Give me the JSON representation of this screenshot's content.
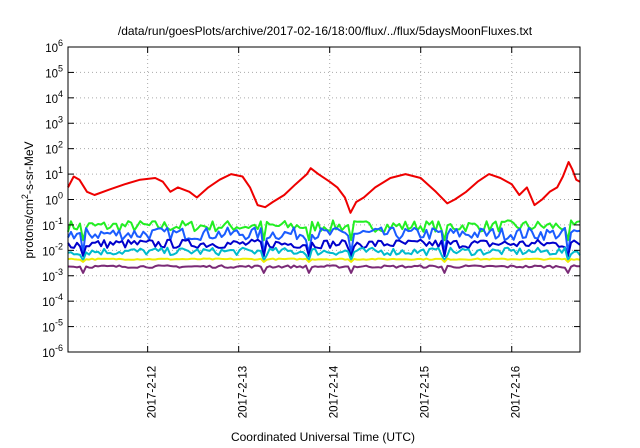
{
  "chart_data": {
    "type": "line",
    "title": "/data/run/goesPlots/archive/2017-02-16/18:00/flux/../flux/5daysMoonFluxes.txt",
    "xlabel": "Coordinated Universal Time (UTC)",
    "ylabel_prefix": "protons/cm",
    "ylabel_sup": "2",
    "ylabel_suffix": "-s-sr-MeV",
    "yscale": "log",
    "ylim_exp": [
      -6,
      6
    ],
    "y_ticks": [
      {
        "base": "10",
        "exp": "6"
      },
      {
        "base": "10",
        "exp": "5"
      },
      {
        "base": "10",
        "exp": "4"
      },
      {
        "base": "10",
        "exp": "3"
      },
      {
        "base": "10",
        "exp": "2"
      },
      {
        "base": "10",
        "exp": "1"
      },
      {
        "base": "10",
        "exp": "0"
      },
      {
        "base": "10",
        "exp": "-1"
      },
      {
        "base": "10",
        "exp": "-2"
      },
      {
        "base": "10",
        "exp": "-3"
      },
      {
        "base": "10",
        "exp": "-4"
      },
      {
        "base": "10",
        "exp": "-5"
      },
      {
        "base": "10",
        "exp": "-6"
      }
    ],
    "x_start": "2017-02-11 03:00",
    "x_end": "2017-02-16 18:00",
    "x_ticks": [
      "2017-2-12",
      "2017-2-13",
      "2017-2-14",
      "2017-2-15",
      "2017-2-16"
    ],
    "grid": true,
    "colors": {
      "red": "#ee0000",
      "green": "#22ee22",
      "blue": "#1a5cff",
      "navy": "#0000cc",
      "cyan": "#00bbcc",
      "yellow": "#eeee00",
      "purple": "#7a2a77"
    },
    "series": [
      {
        "color": "red",
        "points": [
          [
            "2017-02-11 03:00",
            3
          ],
          [
            "2017-02-11 04:30",
            8
          ],
          [
            "2017-02-11 06:00",
            6
          ],
          [
            "2017-02-11 08:00",
            2
          ],
          [
            "2017-02-11 10:00",
            1.5
          ],
          [
            "2017-02-11 14:00",
            2.5
          ],
          [
            "2017-02-11 18:00",
            4
          ],
          [
            "2017-02-11 22:00",
            6
          ],
          [
            "2017-02-12 02:00",
            7
          ],
          [
            "2017-02-12 04:00",
            5
          ],
          [
            "2017-02-12 06:00",
            2
          ],
          [
            "2017-02-12 08:00",
            3
          ],
          [
            "2017-02-12 11:00",
            2
          ],
          [
            "2017-02-12 13:00",
            1.2
          ],
          [
            "2017-02-12 16:00",
            3
          ],
          [
            "2017-02-12 19:00",
            6
          ],
          [
            "2017-02-12 22:00",
            10
          ],
          [
            "2017-02-13 01:00",
            8
          ],
          [
            "2017-02-13 03:00",
            3
          ],
          [
            "2017-02-13 05:00",
            0.6
          ],
          [
            "2017-02-13 07:00",
            0.5
          ],
          [
            "2017-02-13 09:00",
            0.8
          ],
          [
            "2017-02-13 12:00",
            1.5
          ],
          [
            "2017-02-13 15:00",
            4
          ],
          [
            "2017-02-13 18:00",
            10
          ],
          [
            "2017-02-13 19:00",
            17
          ],
          [
            "2017-02-13 21:00",
            10
          ],
          [
            "2017-02-14 00:00",
            5
          ],
          [
            "2017-02-14 02:00",
            3
          ],
          [
            "2017-02-14 04:00",
            1.2
          ],
          [
            "2017-02-14 05:30",
            0.3
          ],
          [
            "2017-02-14 07:00",
            0.8
          ],
          [
            "2017-02-14 09:00",
            1.2
          ],
          [
            "2017-02-14 12:00",
            3
          ],
          [
            "2017-02-14 16:00",
            7
          ],
          [
            "2017-02-14 20:00",
            10
          ],
          [
            "2017-02-15 00:00",
            7
          ],
          [
            "2017-02-15 04:00",
            2
          ],
          [
            "2017-02-15 07:00",
            0.7
          ],
          [
            "2017-02-15 09:00",
            1
          ],
          [
            "2017-02-15 12:00",
            2
          ],
          [
            "2017-02-15 15:00",
            5
          ],
          [
            "2017-02-15 18:00",
            10
          ],
          [
            "2017-02-15 21:00",
            7
          ],
          [
            "2017-02-16 00:00",
            4
          ],
          [
            "2017-02-16 02:00",
            1.5
          ],
          [
            "2017-02-16 04:00",
            3
          ],
          [
            "2017-02-16 06:00",
            0.6
          ],
          [
            "2017-02-16 08:00",
            1
          ],
          [
            "2017-02-16 10:00",
            2
          ],
          [
            "2017-02-16 12:00",
            3
          ],
          [
            "2017-02-16 13:30",
            8
          ],
          [
            "2017-02-16 15:00",
            30
          ],
          [
            "2017-02-16 16:00",
            15
          ],
          [
            "2017-02-16 17:00",
            6
          ],
          [
            "2017-02-16 18:00",
            5
          ]
        ]
      },
      {
        "color": "green",
        "level": 0.09,
        "spread": 0.45,
        "dip_level": 0.025
      },
      {
        "color": "blue",
        "level": 0.045,
        "spread": 0.5,
        "dip_level": 0.008
      },
      {
        "color": "navy",
        "level": 0.018,
        "spread": 0.35,
        "dip_level": 0.006
      },
      {
        "color": "cyan",
        "level": 0.009,
        "spread": 0.3,
        "dip_level": 0.004
      },
      {
        "color": "yellow",
        "level": 0.0045,
        "spread": 0.05,
        "dip_level": 0.0035
      },
      {
        "color": "purple",
        "level": 0.0023,
        "spread": 0.1,
        "dip_level": 0.0013
      }
    ]
  }
}
